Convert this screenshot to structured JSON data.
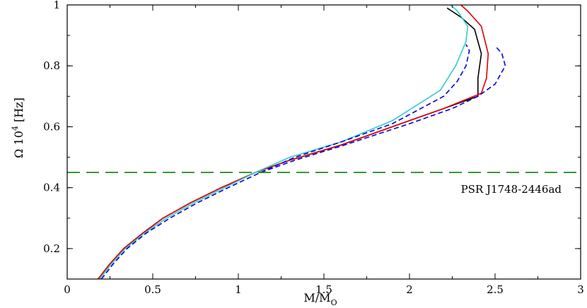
{
  "chart_data": {
    "type": "line",
    "title": "",
    "xlabel": {
      "main": "M/M",
      "sub": "O"
    },
    "ylabel": {
      "main": "Ω 10",
      "sup": "4",
      "unit": " [Hz]"
    },
    "xlim": [
      0,
      3
    ],
    "ylim": [
      0.1,
      1.0
    ],
    "x_ticks": [
      0,
      0.5,
      1,
      1.5,
      2,
      2.5,
      3
    ],
    "x_tick_labels": [
      "0",
      "0.5",
      "1",
      "1.5",
      "2",
      "2.5",
      "3"
    ],
    "y_ticks": [
      0.2,
      0.4,
      0.6,
      0.8,
      1.0
    ],
    "y_tick_labels": [
      "0.2",
      "0.4",
      "0.6",
      "0.8",
      "1"
    ],
    "grid": false,
    "legend": "none",
    "reference_line": {
      "y": 0.45,
      "color": "#1a8c1a",
      "style": "dashed",
      "label": "PSR J1748-2446ad"
    },
    "series": [
      {
        "color": "#000000",
        "style": "solid",
        "points": [
          [
            0.18,
            0.1
          ],
          [
            0.25,
            0.15
          ],
          [
            0.33,
            0.2
          ],
          [
            0.44,
            0.25
          ],
          [
            0.56,
            0.3
          ],
          [
            0.72,
            0.35
          ],
          [
            0.9,
            0.4
          ],
          [
            1.1,
            0.45
          ],
          [
            1.3,
            0.49
          ],
          [
            1.6,
            0.54
          ],
          [
            2.0,
            0.62
          ],
          [
            2.2,
            0.66
          ],
          [
            2.4,
            0.7
          ],
          [
            2.4,
            0.76
          ],
          [
            2.42,
            0.84
          ],
          [
            2.38,
            0.92
          ],
          [
            2.3,
            0.96
          ],
          [
            2.22,
            0.99
          ]
        ]
      },
      {
        "color": "#e00000",
        "style": "solid",
        "points": [
          [
            0.18,
            0.1
          ],
          [
            0.25,
            0.15
          ],
          [
            0.33,
            0.2
          ],
          [
            0.44,
            0.25
          ],
          [
            0.56,
            0.3
          ],
          [
            0.72,
            0.35
          ],
          [
            0.9,
            0.4
          ],
          [
            1.1,
            0.45
          ],
          [
            1.3,
            0.49
          ],
          [
            1.6,
            0.54
          ],
          [
            2.0,
            0.62
          ],
          [
            2.2,
            0.66
          ],
          [
            2.42,
            0.71
          ],
          [
            2.45,
            0.76
          ],
          [
            2.46,
            0.84
          ],
          [
            2.42,
            0.93
          ],
          [
            2.34,
            0.98
          ],
          [
            2.3,
            1.0
          ]
        ]
      },
      {
        "color": "#33cccc",
        "style": "solid",
        "points": [
          [
            0.19,
            0.1
          ],
          [
            0.26,
            0.15
          ],
          [
            0.34,
            0.2
          ],
          [
            0.45,
            0.25
          ],
          [
            0.58,
            0.3
          ],
          [
            0.74,
            0.35
          ],
          [
            0.92,
            0.4
          ],
          [
            1.1,
            0.45
          ],
          [
            1.3,
            0.5
          ],
          [
            1.6,
            0.55
          ],
          [
            1.9,
            0.62
          ],
          [
            2.18,
            0.72
          ],
          [
            2.27,
            0.8
          ],
          [
            2.33,
            0.88
          ],
          [
            2.34,
            0.93
          ],
          [
            2.28,
            0.98
          ],
          [
            2.24,
            1.0
          ]
        ]
      },
      {
        "color": "#0000dd",
        "style": "dashed",
        "points": [
          [
            0.2,
            0.1
          ],
          [
            0.27,
            0.15
          ],
          [
            0.35,
            0.2
          ],
          [
            0.46,
            0.25
          ],
          [
            0.6,
            0.3
          ],
          [
            0.76,
            0.35
          ],
          [
            0.94,
            0.4
          ],
          [
            1.13,
            0.45
          ],
          [
            1.33,
            0.49
          ],
          [
            1.62,
            0.54
          ],
          [
            2.0,
            0.61
          ],
          [
            2.25,
            0.66
          ],
          [
            2.4,
            0.7
          ],
          [
            2.5,
            0.74
          ],
          [
            2.56,
            0.8
          ],
          [
            2.54,
            0.84
          ],
          [
            2.51,
            0.86
          ]
        ]
      },
      {
        "color": "#0000dd",
        "style": "dashed",
        "points": [
          [
            1.13,
            0.45
          ],
          [
            1.33,
            0.5
          ],
          [
            1.6,
            0.55
          ],
          [
            1.9,
            0.61
          ],
          [
            2.2,
            0.7
          ],
          [
            2.28,
            0.75
          ],
          [
            2.33,
            0.8
          ],
          [
            2.35,
            0.85
          ],
          [
            2.33,
            0.87
          ]
        ]
      }
    ]
  }
}
